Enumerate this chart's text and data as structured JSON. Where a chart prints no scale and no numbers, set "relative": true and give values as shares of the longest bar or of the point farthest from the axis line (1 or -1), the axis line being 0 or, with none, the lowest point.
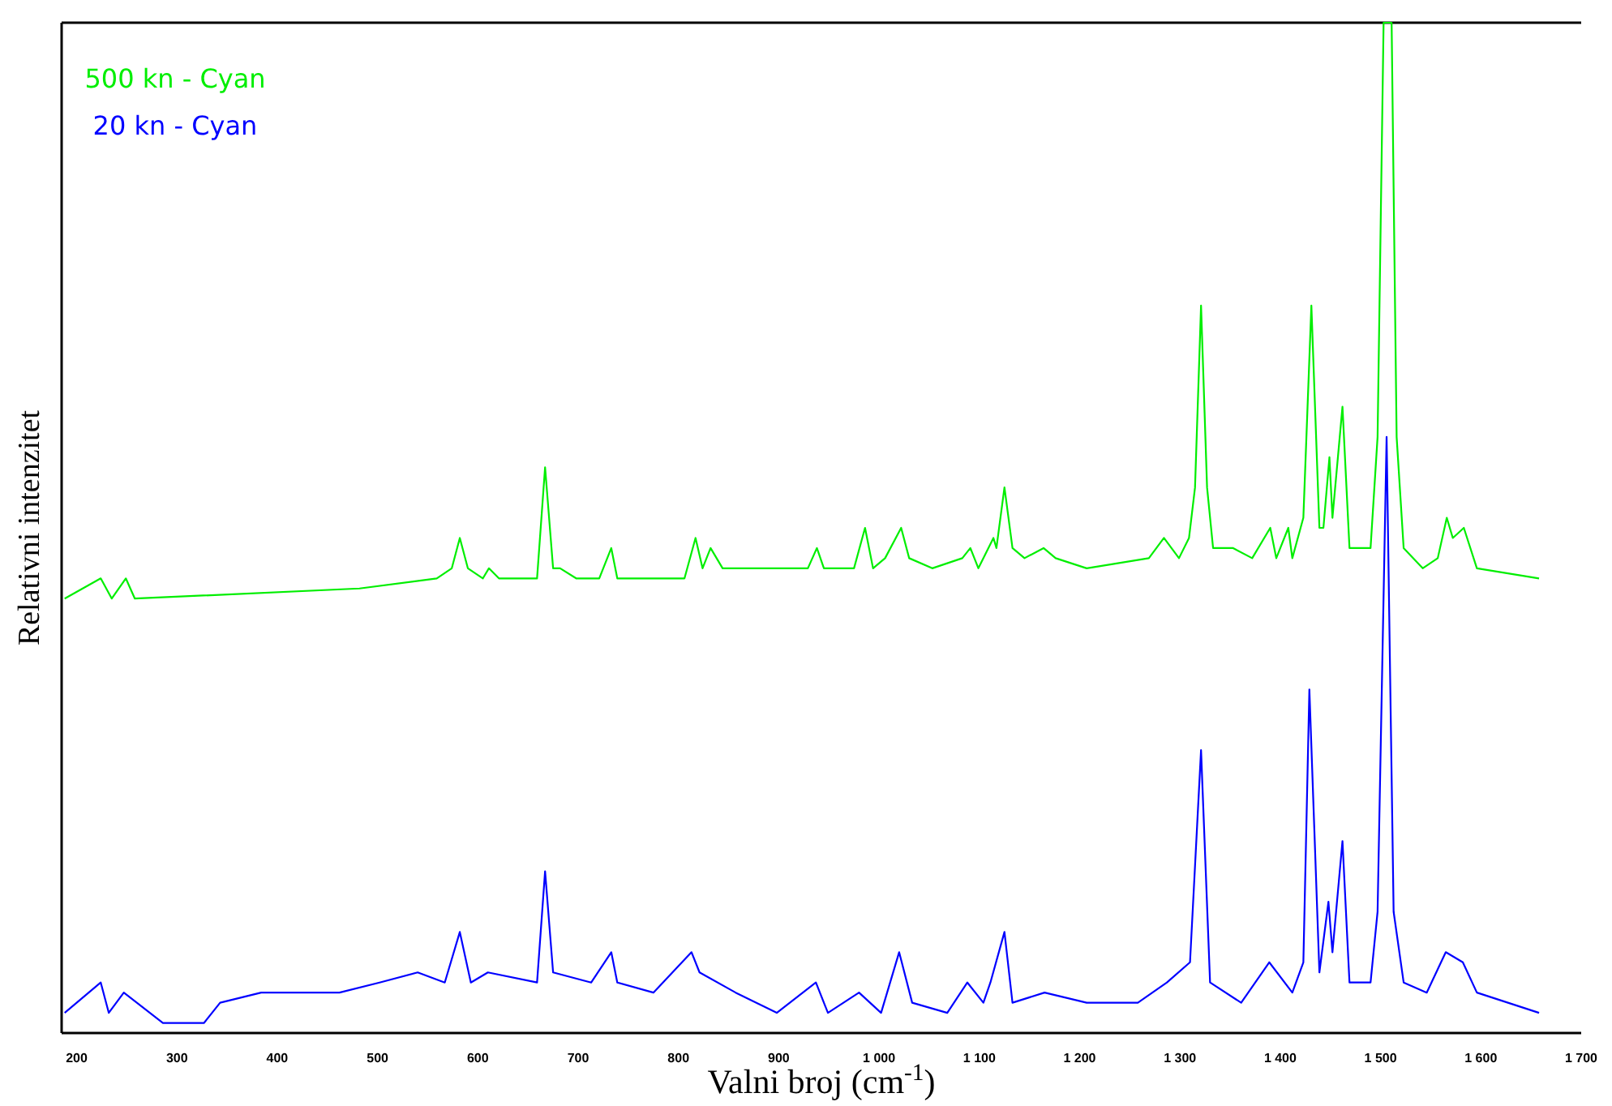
{
  "chart_data": {
    "type": "line",
    "relative": true,
    "xlabel": "Valni broj (cm$^{-1}$)",
    "ylabel": "Relativni intenzitet",
    "xlim": [
      185,
      1700
    ],
    "xticks": [
      200,
      300,
      400,
      500,
      600,
      700,
      800,
      900,
      {
        "value": 1000,
        "label": "1 000"
      },
      {
        "value": 1100,
        "label": "1 100"
      },
      {
        "value": 1200,
        "label": "1 200"
      },
      {
        "value": 1300,
        "label": "1 300"
      },
      {
        "value": 1400,
        "label": "1 400"
      },
      {
        "value": 1500,
        "label": "1 500"
      },
      {
        "value": 1600,
        "label": "1 600"
      },
      {
        "value": 1700,
        "label": "1 700"
      }
    ],
    "legend": "top left",
    "series": [
      {
        "name": "500 kn - Cyan",
        "color": "#00ee00",
        "x": [
          188,
          224,
          235,
          249,
          258,
          482,
          559,
          574,
          582,
          590,
          605,
          611,
          621,
          659,
          667,
          675,
          682,
          698,
          721,
          733,
          739,
          759,
          806,
          817,
          824,
          832,
          844,
          898,
          929,
          938,
          945,
          975,
          986,
          994,
          1006,
          1022,
          1030,
          1053,
          1083,
          1091,
          1099,
          1114,
          1117,
          1125,
          1133,
          1145,
          1164,
          1176,
          1207,
          1269,
          1284,
          1299,
          1309,
          1315,
          1321,
          1327,
          1333,
          1353,
          1372,
          1390,
          1396,
          1408,
          1412,
          1423,
          1431,
          1439,
          1443,
          1449,
          1452,
          1462,
          1469,
          1490,
          1497,
          1503,
          1511,
          1516,
          1523,
          1542,
          1557,
          1566,
          1572,
          1583,
          1596,
          1658
        ],
        "values": [
          0.43,
          0.45,
          0.43,
          0.45,
          0.43,
          0.44,
          0.45,
          0.46,
          0.49,
          0.46,
          0.45,
          0.46,
          0.45,
          0.45,
          0.56,
          0.46,
          0.46,
          0.45,
          0.45,
          0.48,
          0.45,
          0.45,
          0.45,
          0.49,
          0.46,
          0.48,
          0.46,
          0.46,
          0.46,
          0.48,
          0.46,
          0.46,
          0.5,
          0.46,
          0.47,
          0.5,
          0.47,
          0.46,
          0.47,
          0.48,
          0.46,
          0.49,
          0.48,
          0.54,
          0.48,
          0.47,
          0.48,
          0.47,
          0.46,
          0.47,
          0.49,
          0.47,
          0.49,
          0.54,
          0.72,
          0.54,
          0.48,
          0.48,
          0.47,
          0.5,
          0.47,
          0.5,
          0.47,
          0.51,
          0.72,
          0.5,
          0.5,
          0.57,
          0.51,
          0.62,
          0.48,
          0.48,
          0.59,
          1.0,
          1.0,
          0.59,
          0.48,
          0.46,
          0.47,
          0.51,
          0.49,
          0.5,
          0.46,
          0.45
        ]
      },
      {
        "name": "20 kn - Cyan",
        "color": "#0000ff",
        "x": [
          188,
          224,
          232,
          247,
          286,
          327,
          343,
          384,
          431,
          462,
          502,
          540,
          567,
          582,
          593,
          610,
          659,
          667,
          675,
          713,
          733,
          739,
          775,
          813,
          821,
          857,
          898,
          937,
          949,
          980,
          1002,
          1020,
          1033,
          1068,
          1088,
          1104,
          1111,
          1125,
          1133,
          1165,
          1207,
          1258,
          1287,
          1310,
          1321,
          1330,
          1361,
          1389,
          1412,
          1423,
          1429,
          1439,
          1448,
          1452,
          1462,
          1469,
          1490,
          1497,
          1506,
          1513,
          1523,
          1546,
          1565,
          1582,
          1596,
          1658
        ],
        "values": [
          0.02,
          0.05,
          0.02,
          0.04,
          0.01,
          0.01,
          0.03,
          0.04,
          0.04,
          0.04,
          0.05,
          0.06,
          0.05,
          0.1,
          0.05,
          0.06,
          0.05,
          0.16,
          0.06,
          0.05,
          0.08,
          0.05,
          0.04,
          0.08,
          0.06,
          0.04,
          0.02,
          0.05,
          0.02,
          0.04,
          0.02,
          0.08,
          0.03,
          0.02,
          0.05,
          0.03,
          0.05,
          0.1,
          0.03,
          0.04,
          0.03,
          0.03,
          0.05,
          0.07,
          0.28,
          0.05,
          0.03,
          0.07,
          0.04,
          0.07,
          0.34,
          0.06,
          0.13,
          0.08,
          0.19,
          0.05,
          0.05,
          0.12,
          0.59,
          0.12,
          0.05,
          0.04,
          0.08,
          0.07,
          0.04,
          0.02
        ]
      }
    ]
  }
}
